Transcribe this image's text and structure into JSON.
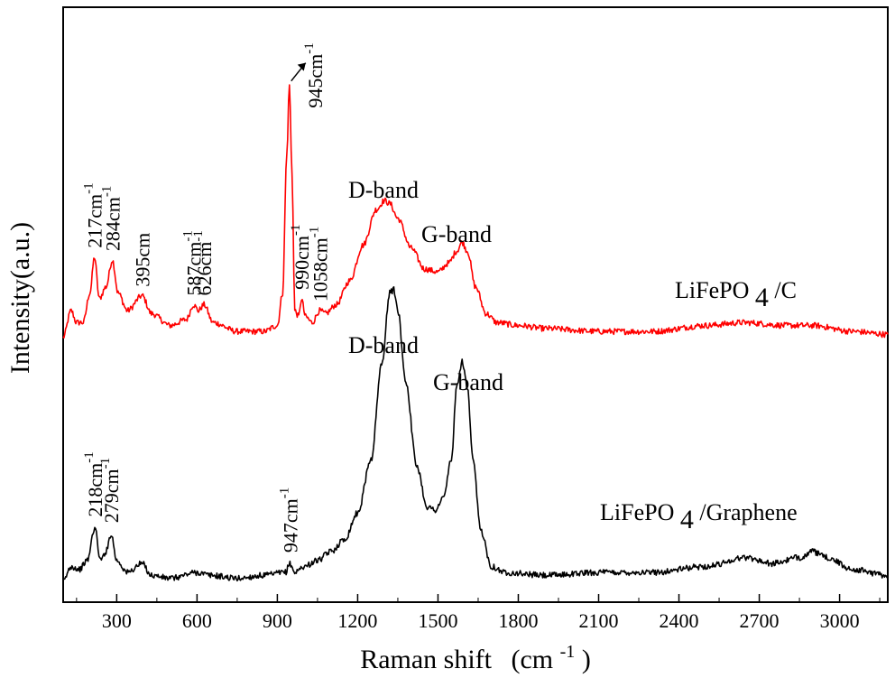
{
  "chart_data": {
    "type": "line",
    "title": "",
    "xlabel": "Raman shift",
    "xlabel_unit": "(cm",
    "xlabel_unit_exp": "-1",
    "xlabel_unit_close": ")",
    "ylabel": "Intensity(a.u.)",
    "xlim": [
      100,
      3180
    ],
    "ylim": [
      0,
      1
    ],
    "y_ticks_labeled": false,
    "grid": false,
    "x_ticks": [
      300,
      600,
      900,
      1200,
      1500,
      1800,
      2100,
      2400,
      2700,
      3000
    ],
    "x_tick_labels": [
      "300",
      "600",
      "900",
      "1200",
      "1500",
      "1800",
      "2100",
      "2400",
      "2700",
      "3000"
    ],
    "series": [
      {
        "name": "LiFePO4/C",
        "label_main": "LiFePO",
        "label_sub": "4",
        "label_tail": "/C",
        "color": "#ff0000",
        "baseline": 0.445,
        "points": [
          [
            100,
            0.445
          ],
          [
            130,
            0.49
          ],
          [
            150,
            0.47
          ],
          [
            175,
            0.47
          ],
          [
            200,
            0.52
          ],
          [
            217,
            0.58
          ],
          [
            235,
            0.51
          ],
          [
            260,
            0.53
          ],
          [
            284,
            0.575
          ],
          [
            305,
            0.52
          ],
          [
            340,
            0.49
          ],
          [
            395,
            0.515
          ],
          [
            430,
            0.485
          ],
          [
            500,
            0.465
          ],
          [
            560,
            0.475
          ],
          [
            587,
            0.5
          ],
          [
            605,
            0.49
          ],
          [
            626,
            0.5
          ],
          [
            660,
            0.47
          ],
          [
            750,
            0.455
          ],
          [
            850,
            0.455
          ],
          [
            900,
            0.465
          ],
          [
            920,
            0.52
          ],
          [
            935,
            0.75
          ],
          [
            945,
            0.87
          ],
          [
            955,
            0.72
          ],
          [
            965,
            0.49
          ],
          [
            980,
            0.48
          ],
          [
            990,
            0.51
          ],
          [
            1005,
            0.48
          ],
          [
            1030,
            0.47
          ],
          [
            1058,
            0.49
          ],
          [
            1080,
            0.485
          ],
          [
            1120,
            0.5
          ],
          [
            1170,
            0.54
          ],
          [
            1220,
            0.6
          ],
          [
            1270,
            0.66
          ],
          [
            1300,
            0.675
          ],
          [
            1320,
            0.67
          ],
          [
            1350,
            0.645
          ],
          [
            1400,
            0.595
          ],
          [
            1450,
            0.56
          ],
          [
            1500,
            0.555
          ],
          [
            1540,
            0.57
          ],
          [
            1570,
            0.59
          ],
          [
            1590,
            0.605
          ],
          [
            1610,
            0.59
          ],
          [
            1640,
            0.53
          ],
          [
            1680,
            0.485
          ],
          [
            1720,
            0.47
          ],
          [
            1800,
            0.465
          ],
          [
            1900,
            0.46
          ],
          [
            2100,
            0.455
          ],
          [
            2300,
            0.455
          ],
          [
            2500,
            0.465
          ],
          [
            2640,
            0.47
          ],
          [
            2800,
            0.465
          ],
          [
            2900,
            0.465
          ],
          [
            3050,
            0.455
          ],
          [
            3180,
            0.45
          ]
        ]
      },
      {
        "name": "LiFePO4/Graphene",
        "label_main": "LiFePO",
        "label_sub": "4",
        "label_tail": "/Graphene",
        "color": "#000000",
        "baseline": 0.032,
        "points": [
          [
            100,
            0.035
          ],
          [
            130,
            0.06
          ],
          [
            160,
            0.055
          ],
          [
            190,
            0.07
          ],
          [
            218,
            0.125
          ],
          [
            240,
            0.07
          ],
          [
            260,
            0.085
          ],
          [
            279,
            0.115
          ],
          [
            300,
            0.07
          ],
          [
            340,
            0.05
          ],
          [
            395,
            0.065
          ],
          [
            430,
            0.045
          ],
          [
            500,
            0.04
          ],
          [
            600,
            0.05
          ],
          [
            650,
            0.045
          ],
          [
            750,
            0.04
          ],
          [
            850,
            0.045
          ],
          [
            930,
            0.05
          ],
          [
            947,
            0.065
          ],
          [
            965,
            0.05
          ],
          [
            1000,
            0.06
          ],
          [
            1050,
            0.07
          ],
          [
            1100,
            0.085
          ],
          [
            1150,
            0.105
          ],
          [
            1200,
            0.15
          ],
          [
            1250,
            0.24
          ],
          [
            1290,
            0.4
          ],
          [
            1320,
            0.52
          ],
          [
            1335,
            0.525
          ],
          [
            1350,
            0.49
          ],
          [
            1380,
            0.37
          ],
          [
            1420,
            0.23
          ],
          [
            1460,
            0.16
          ],
          [
            1490,
            0.155
          ],
          [
            1520,
            0.175
          ],
          [
            1550,
            0.24
          ],
          [
            1570,
            0.36
          ],
          [
            1590,
            0.405
          ],
          [
            1610,
            0.36
          ],
          [
            1630,
            0.24
          ],
          [
            1660,
            0.12
          ],
          [
            1700,
            0.06
          ],
          [
            1750,
            0.05
          ],
          [
            1900,
            0.045
          ],
          [
            2100,
            0.05
          ],
          [
            2300,
            0.05
          ],
          [
            2500,
            0.06
          ],
          [
            2650,
            0.075
          ],
          [
            2750,
            0.065
          ],
          [
            2850,
            0.075
          ],
          [
            2900,
            0.085
          ],
          [
            2950,
            0.075
          ],
          [
            3050,
            0.055
          ],
          [
            3180,
            0.045
          ]
        ]
      }
    ],
    "annotations": {
      "red_peaks": [
        {
          "text": "217cm",
          "exp": "-1",
          "x": 217,
          "y": 0.58,
          "arrow": false
        },
        {
          "text": "284cm",
          "exp": "-1",
          "x": 284,
          "y": 0.575,
          "arrow": false
        },
        {
          "text": "395cm",
          "exp": "",
          "x": 395,
          "y": 0.515,
          "arrow": false
        },
        {
          "text": "587cm",
          "exp": "-1",
          "x": 587,
          "y": 0.5,
          "arrow": false
        },
        {
          "text": "626cm",
          "exp": "-1",
          "x": 626,
          "y": 0.5,
          "arrow": false
        },
        {
          "text": "945cm",
          "exp": "-1",
          "x": 945,
          "y": 0.87,
          "arrow": true
        },
        {
          "text": "990cm",
          "exp": "-1",
          "x": 990,
          "y": 0.51,
          "arrow": false
        },
        {
          "text": "1058cm",
          "exp": "-1",
          "x": 1058,
          "y": 0.49,
          "arrow": false
        }
      ],
      "black_peaks": [
        {
          "text": "218cm",
          "exp": "-1",
          "x": 218,
          "y": 0.125
        },
        {
          "text": "279cm",
          "exp": "-1",
          "x": 279,
          "y": 0.115
        },
        {
          "text": "947cm",
          "exp": "-1",
          "x": 947,
          "y": 0.065
        }
      ],
      "bands": [
        {
          "text": "D-band",
          "series": "LiFePO4/C"
        },
        {
          "text": "G-band",
          "series": "LiFePO4/C"
        },
        {
          "text": "D-band",
          "series": "LiFePO4/Graphene"
        },
        {
          "text": "G-band",
          "series": "LiFePO4/Graphene"
        }
      ]
    }
  }
}
